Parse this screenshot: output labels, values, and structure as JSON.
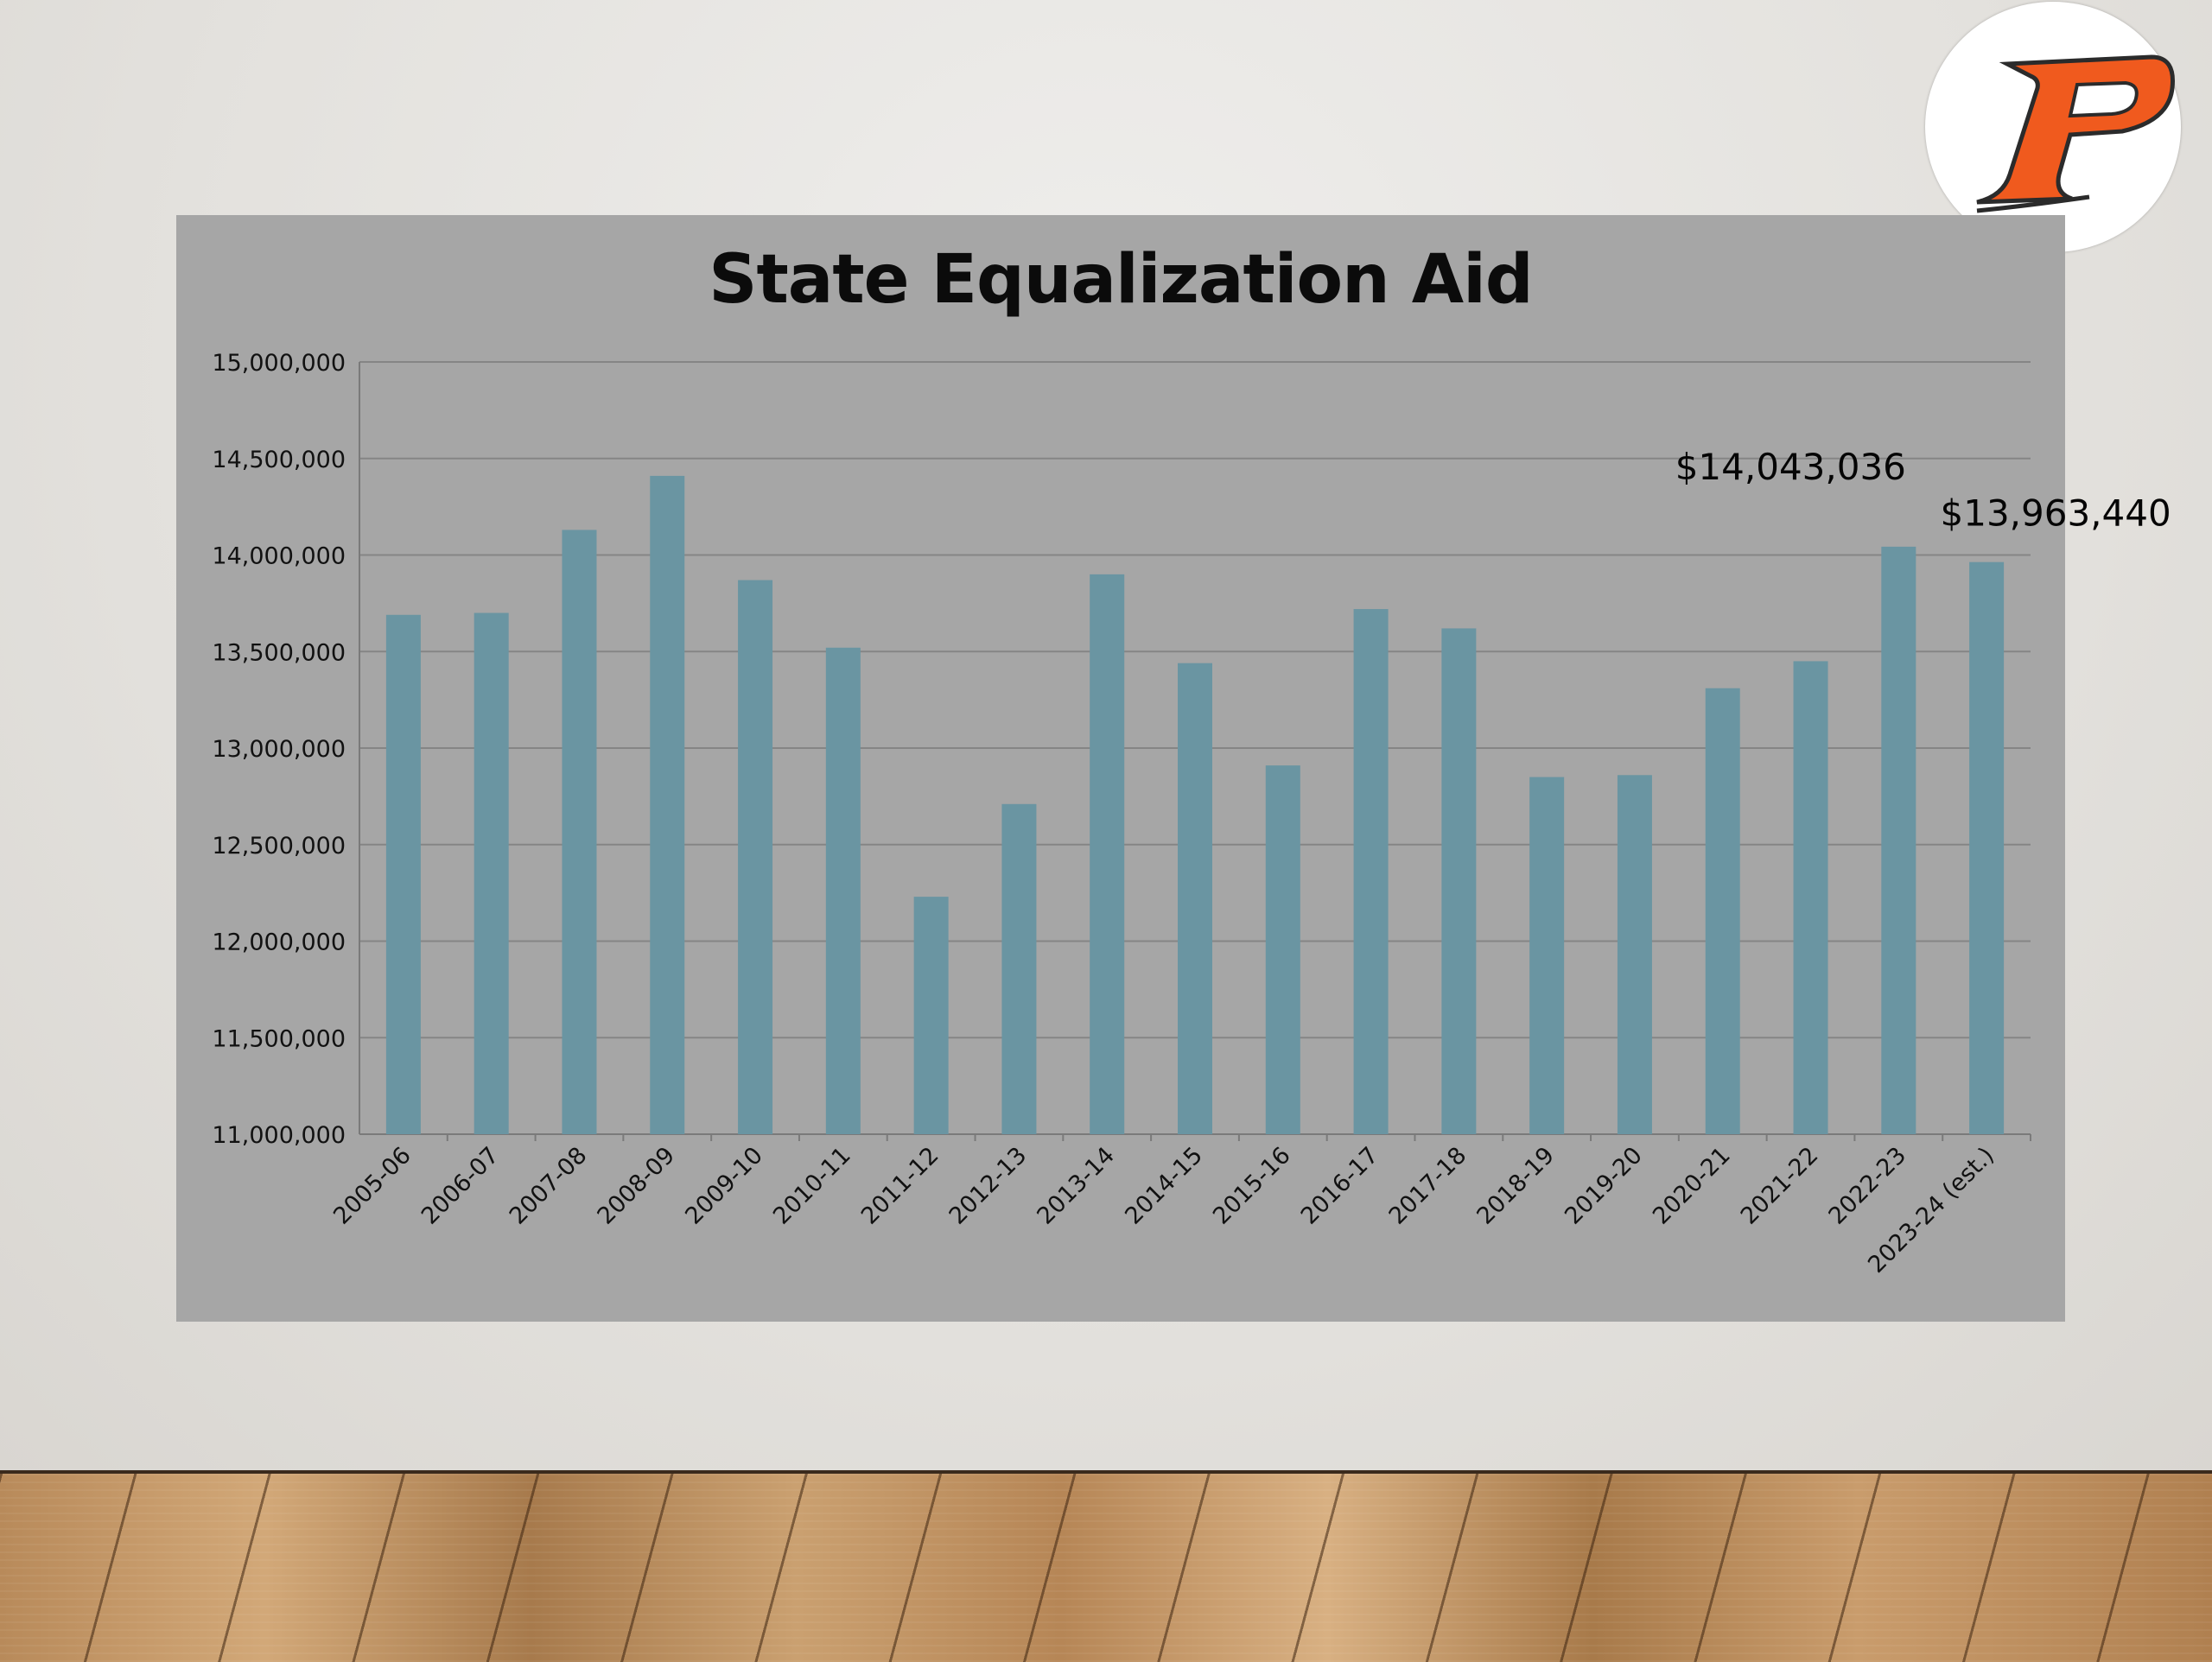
{
  "logo": {
    "icon": "stylized-letter-p-logo",
    "accent": "#f05a1e"
  },
  "chart_data": {
    "type": "bar",
    "title": "State Equalization Aid",
    "xlabel": "",
    "ylabel": "",
    "ylim": [
      11000000,
      15000000
    ],
    "yticks": [
      11000000,
      11500000,
      12000000,
      12500000,
      13000000,
      13500000,
      14000000,
      14500000,
      15000000
    ],
    "ytick_labels": [
      "11,000,000",
      "11,500,000",
      "12,000,000",
      "12,500,000",
      "13,000,000",
      "13,500,000",
      "14,000,000",
      "14,500,000",
      "15,000,000"
    ],
    "categories": [
      "2005-06",
      "2006-07",
      "2007-08",
      "2008-09",
      "2009-10",
      "2010-11",
      "2011-12",
      "2012-13",
      "2013-14",
      "2014-15",
      "2015-16",
      "2016-17",
      "2017-18",
      "2018-19",
      "2019-20",
      "2020-21",
      "2021-22",
      "2022-23",
      "2023-24 (est.)"
    ],
    "values": [
      13690000,
      13700000,
      14130000,
      14410000,
      13870000,
      13520000,
      12230000,
      12710000,
      13900000,
      13440000,
      12910000,
      13720000,
      13620000,
      12850000,
      12860000,
      13310000,
      13450000,
      14043036,
      13963440
    ],
    "grid": true,
    "bar_color": "#6a95a2",
    "annotations": [
      {
        "category": "2022-23",
        "text": "$14,043,036"
      },
      {
        "category": "2023-24 (est.)",
        "text": "$13,963,440"
      }
    ]
  }
}
